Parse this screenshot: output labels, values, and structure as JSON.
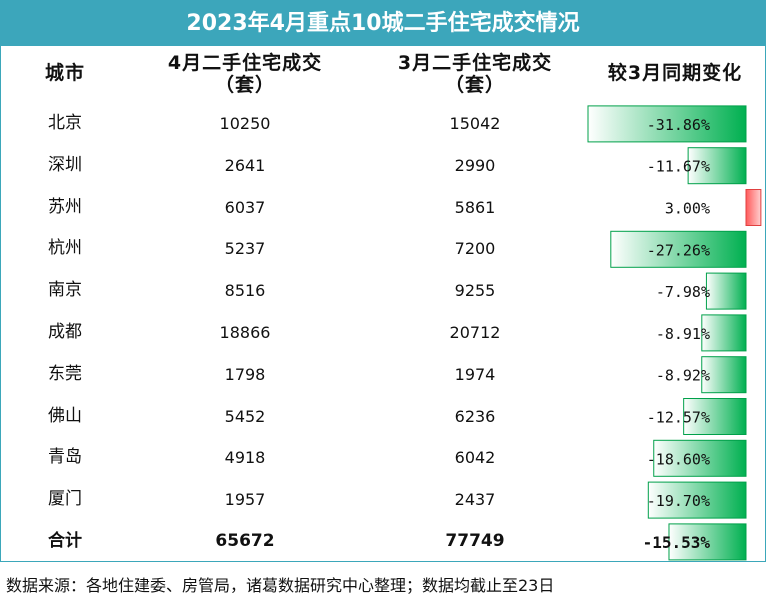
{
  "title": "2023年4月重点10城二手住宅成交情况",
  "headers": {
    "city": "城市",
    "april_line1": "4月二手住宅成交",
    "april_line2": "（套）",
    "march_line1": "3月二手住宅成交",
    "march_line2": "（套）",
    "change": "较3月同期变化"
  },
  "rows": [
    {
      "city": "北京",
      "april": "10250",
      "march": "15042",
      "change": "-31.86%"
    },
    {
      "city": "深圳",
      "april": "2641",
      "march": "2990",
      "change": "-11.67%"
    },
    {
      "city": "苏州",
      "april": "6037",
      "march": "5861",
      "change": "3.00%"
    },
    {
      "city": "杭州",
      "april": "5237",
      "march": "7200",
      "change": "-27.26%"
    },
    {
      "city": "南京",
      "april": "8516",
      "march": "9255",
      "change": "-7.98%"
    },
    {
      "city": "成都",
      "april": "18866",
      "march": "20712",
      "change": "-8.91%"
    },
    {
      "city": "东莞",
      "april": "1798",
      "march": "1974",
      "change": "-8.92%"
    },
    {
      "city": "佛山",
      "april": "5452",
      "march": "6236",
      "change": "-12.57%"
    },
    {
      "city": "青岛",
      "april": "4918",
      "march": "6042",
      "change": "-18.60%"
    },
    {
      "city": "厦门",
      "april": "1957",
      "march": "2437",
      "change": "-19.70%"
    }
  ],
  "total": {
    "city": "合计",
    "april": "65672",
    "march": "77749",
    "change": "-15.53%"
  },
  "footer": "数据来源：各地住建委、房管局，诸葛数据研究中心整理；数据均截止至23日",
  "colors": {
    "title_bg": "#3ca6bb",
    "negative_bar": "#00b050",
    "positive_bar": "#ff6b6b"
  },
  "chart_data": {
    "type": "bar",
    "title": "较3月同期变化",
    "categories": [
      "北京",
      "深圳",
      "苏州",
      "杭州",
      "南京",
      "成都",
      "东莞",
      "佛山",
      "青岛",
      "厦门",
      "合计"
    ],
    "values": [
      -31.86,
      -11.67,
      3.0,
      -27.26,
      -7.98,
      -8.91,
      -8.92,
      -12.57,
      -18.6,
      -19.7,
      -15.53
    ],
    "unit": "%"
  }
}
